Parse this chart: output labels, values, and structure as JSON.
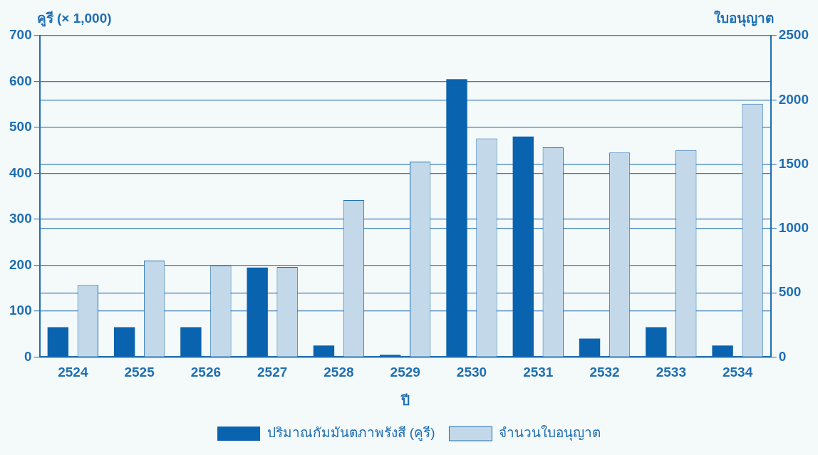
{
  "chart_data": {
    "type": "bar",
    "ylabel": "คูรี (× 1,000)",
    "y2label": "ใบอนุญาต",
    "xlabel": "ปี",
    "categories": [
      "2524",
      "2525",
      "2526",
      "2527",
      "2528",
      "2529",
      "2530",
      "2531",
      "2532",
      "2533",
      "2534"
    ],
    "series": [
      {
        "name": "ปริมาณกัมมันตภาพรังสี (คูรี)",
        "color": "#0a63ae",
        "values": [
          65,
          65,
          65,
          195,
          25,
          5,
          605,
          480,
          40,
          65,
          25
        ]
      },
      {
        "name": "จำนวนใบอนุญาต",
        "color": "#c3d9ea",
        "axis": "y2",
        "values": [
          560,
          750,
          710,
          700,
          1220,
          1520,
          1700,
          1630,
          1590,
          1610,
          1970
        ]
      }
    ],
    "ylim": [
      0,
      700
    ],
    "yticks": [
      0,
      100,
      200,
      300,
      400,
      500,
      600,
      700
    ],
    "y2lim": [
      0,
      2500
    ],
    "y2ticks": [
      0,
      500,
      1000,
      1500,
      2000,
      2500
    ],
    "grid": true,
    "legend": "bottom"
  }
}
